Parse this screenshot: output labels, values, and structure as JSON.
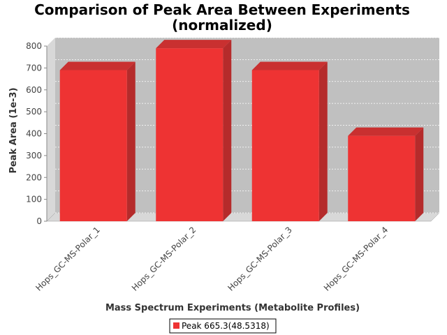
{
  "chart_data": {
    "type": "bar",
    "title": "Comparison of Peak Area Between Experiments",
    "subtitle": "(normalized)",
    "xlabel": "Mass Spectrum Experiments (Metabolite Profiles)",
    "ylabel": "Peak Area (1e-3)",
    "categories": [
      "Hops_GC-MS-Polar_1",
      "Hops_GC-MS-Polar_2",
      "Hops_GC-MS-Polar_3",
      "Hops_GC-MS-Polar_4"
    ],
    "series": [
      {
        "name": "Peak 665.3(48.5318)",
        "values": [
          690,
          790,
          690,
          390
        ]
      }
    ],
    "ylim": [
      0,
      800
    ],
    "yticks": [
      "0",
      "100",
      "200",
      "300",
      "400",
      "500",
      "600",
      "700",
      "800"
    ],
    "grid": true,
    "legend": "bottom-center",
    "colors": {
      "bar_front": "#ee3333",
      "bar_side": "#b52b2b",
      "bar_top": "#c93030",
      "plot_back": "#c0c0c0",
      "plot_wall": "#d8d8d8",
      "grid": "#ffffff"
    }
  }
}
